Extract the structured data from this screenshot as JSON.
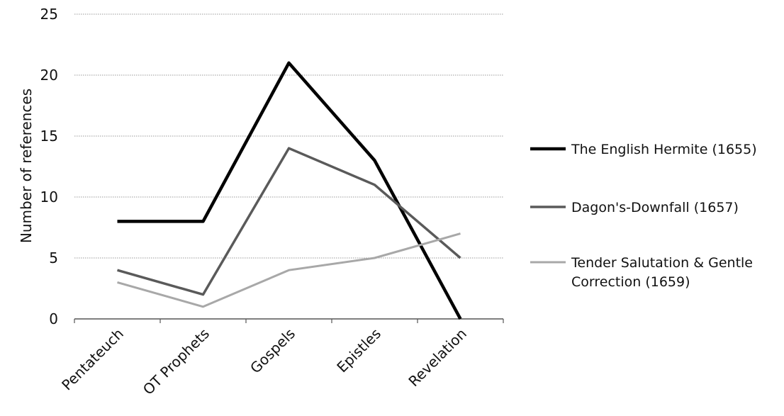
{
  "chart_data": {
    "type": "line",
    "title": "",
    "xlabel": "",
    "ylabel": "Number of references",
    "categories": [
      "Pentateuch",
      "OT Prophets",
      "Gospels",
      "Epistles",
      "Revelation"
    ],
    "ylim": [
      0,
      25
    ],
    "yticks": [
      0,
      5,
      10,
      15,
      20,
      25
    ],
    "grid": true,
    "legend_position": "right",
    "series": [
      {
        "name": "The English Hermite (1655)",
        "values": [
          8,
          8,
          21,
          13,
          0
        ],
        "color": "#000000"
      },
      {
        "name": "Dagon's-Downfall (1657)",
        "values": [
          4,
          2,
          14,
          11,
          5
        ],
        "color": "#5a5a5a"
      },
      {
        "name": "Tender Salutation & Gentle Correction (1659)",
        "name_lines": [
          "Tender Salutation & Gentle",
          "Correction (1659)"
        ],
        "values": [
          3,
          1,
          4,
          5,
          7
        ],
        "color": "#a8a8a8"
      }
    ]
  }
}
